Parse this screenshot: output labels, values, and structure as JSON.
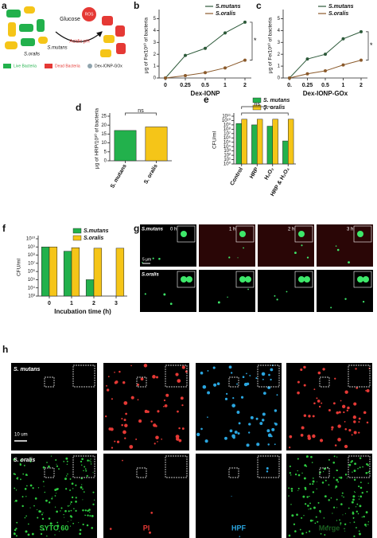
{
  "panel_labels": [
    "a",
    "b",
    "c",
    "d",
    "e",
    "f",
    "g",
    "h"
  ],
  "schematic": {
    "glucose": "Glucose",
    "ros": "ROS",
    "acidic": "Acidic pH",
    "mutans": "S.mutans",
    "oralis": "S.oralis",
    "legend": [
      "Live Bacteria",
      "Dead Bacteria",
      "Dex-IONP-GOx"
    ]
  },
  "chart_data": [
    {
      "type": "line",
      "x_label": "Dex-IONP",
      "y_label": "μg of Fe/10¹⁰ of bacteria",
      "categories": [
        "0",
        "0.25",
        "0.5",
        "1",
        "2"
      ],
      "series": [
        {
          "name": "S.mutans",
          "color": "#2d5a3a",
          "values": [
            0,
            1.9,
            2.5,
            3.8,
            4.7
          ]
        },
        {
          "name": "S.oralis",
          "color": "#8b5a2b",
          "values": [
            0,
            0.2,
            0.45,
            0.85,
            1.5
          ]
        }
      ],
      "ylim": [
        0,
        5.5
      ],
      "yticks": [
        0,
        1,
        2,
        3,
        4,
        5
      ],
      "annotations": [
        "*"
      ]
    },
    {
      "type": "line",
      "x_label": "Dex-IONP-GOx",
      "y_label": "μg of Fe/10¹⁰ of bacteria",
      "categories": [
        "0.",
        "0.25",
        "0.5",
        "1",
        "2"
      ],
      "series": [
        {
          "name": "S.mutans",
          "color": "#2d5a3a",
          "values": [
            0,
            1.6,
            2.0,
            3.3,
            3.9
          ]
        },
        {
          "name": "S.oralis",
          "color": "#8b5a2b",
          "values": [
            0,
            0.35,
            0.6,
            1.1,
            1.5
          ]
        }
      ],
      "ylim": [
        0,
        5.5
      ],
      "yticks": [
        0,
        1,
        2,
        3,
        4,
        5
      ],
      "annotations": [
        "*"
      ]
    },
    {
      "type": "bar",
      "y_label": "μg of HRP/10¹⁰ of bacteria",
      "categories": [
        "S. mutans",
        "S. oralis"
      ],
      "series": [
        {
          "colors": [
            "#22b14c",
            "#f5c518"
          ],
          "values": [
            17,
            19
          ]
        }
      ],
      "ylim": [
        0,
        25
      ],
      "yticks": [
        0,
        5,
        10,
        15,
        20,
        25
      ],
      "annotations": [
        "ns"
      ]
    },
    {
      "type": "bar",
      "log": true,
      "y_label": "CFU/ml",
      "categories": [
        "Control",
        "HRP",
        "H₂O₂",
        "HRP & H₂O₂"
      ],
      "series": [
        {
          "name": "S. mutans",
          "color": "#22b14c",
          "values": [
            2000000000,
            1000000000,
            500000000,
            200000
          ]
        },
        {
          "name": "S. oralis",
          "color": "#f5c518",
          "values": [
            20000000000,
            20000000000,
            20000000000,
            20000000000
          ]
        }
      ],
      "ylim": [
        1,
        100000000000
      ],
      "yticks": [
        {
          "value": 1,
          "label": "10⁰"
        },
        {
          "value": 10,
          "label": "10¹"
        },
        {
          "value": 100,
          "label": "10²"
        },
        {
          "value": 1000,
          "label": "10³"
        },
        {
          "value": 10000,
          "label": "10⁴"
        },
        {
          "value": 100000,
          "label": "10⁵"
        },
        {
          "value": 1000000,
          "label": "10⁶"
        },
        {
          "value": 10000000,
          "label": "10⁷"
        },
        {
          "value": 100000000,
          "label": "10⁸"
        },
        {
          "value": 1000000000,
          "label": "10⁹"
        },
        {
          "value": 10000000000,
          "label": "10¹⁰"
        },
        {
          "value": 100000000000,
          "label": "10¹¹"
        }
      ],
      "annotations": [
        "ns",
        "*"
      ]
    },
    {
      "type": "bar",
      "log": true,
      "x_label": "Incubation time (h)",
      "y_label": "CFU/ml",
      "categories": [
        "0",
        "1",
        "2",
        "3"
      ],
      "series": [
        {
          "name": "S.mutans",
          "color": "#22b14c",
          "values": [
            1000000000,
            300000000,
            100000,
            null
          ]
        },
        {
          "name": "S.oralis",
          "color": "#f5c518",
          "values": [
            1000000000,
            800000000,
            700000000,
            700000000
          ]
        }
      ],
      "ylim": [
        1000,
        10000000000
      ],
      "yticks": [
        {
          "value": 1000,
          "label": "10³"
        },
        {
          "value": 10000,
          "label": "10⁴"
        },
        {
          "value": 100000,
          "label": "10⁵"
        },
        {
          "value": 1000000,
          "label": "10⁶"
        },
        {
          "value": 10000000,
          "label": "10⁷"
        },
        {
          "value": 100000000,
          "label": "10⁸"
        },
        {
          "value": 1000000000,
          "label": "10⁹"
        },
        {
          "value": 10000000000,
          "label": "10¹⁰"
        }
      ]
    }
  ],
  "microscopy_g": {
    "rows": [
      "S.mutans",
      "S.oralis"
    ],
    "times": [
      "0 h",
      "1 h",
      "2 h",
      "3 h"
    ],
    "scale": "5 μm"
  },
  "microscopy_h": {
    "rows": [
      "S. mutans",
      "S. oralis"
    ],
    "scale": "10 um",
    "columns": [
      "SYTO 60",
      "PI",
      "HPF",
      "Merge"
    ]
  }
}
